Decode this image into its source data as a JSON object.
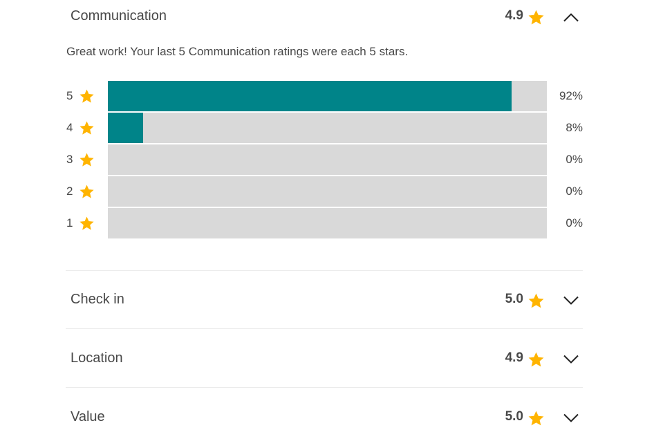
{
  "colors": {
    "star": "#FFB400",
    "bar_fill": "#008489",
    "bar_track": "#D9D9D9",
    "text": "#484848"
  },
  "expanded_category": {
    "title": "Communication",
    "score": "4.9",
    "chevron_icon": "chevron-up-icon",
    "summary": "Great work! Your last 5 Communication ratings were each 5 stars.",
    "breakdown": [
      {
        "stars": "5",
        "percent_label": "92%",
        "fraction": 0.92
      },
      {
        "stars": "4",
        "percent_label": "8%",
        "fraction": 0.08
      },
      {
        "stars": "3",
        "percent_label": "0%",
        "fraction": 0
      },
      {
        "stars": "2",
        "percent_label": "0%",
        "fraction": 0
      },
      {
        "stars": "1",
        "percent_label": "0%",
        "fraction": 0
      }
    ]
  },
  "collapsed_categories": [
    {
      "title": "Check in",
      "score": "5.0",
      "chevron_icon": "chevron-down-icon"
    },
    {
      "title": "Location",
      "score": "4.9",
      "chevron_icon": "chevron-down-icon"
    },
    {
      "title": "Value",
      "score": "5.0",
      "chevron_icon": "chevron-down-icon"
    }
  ]
}
